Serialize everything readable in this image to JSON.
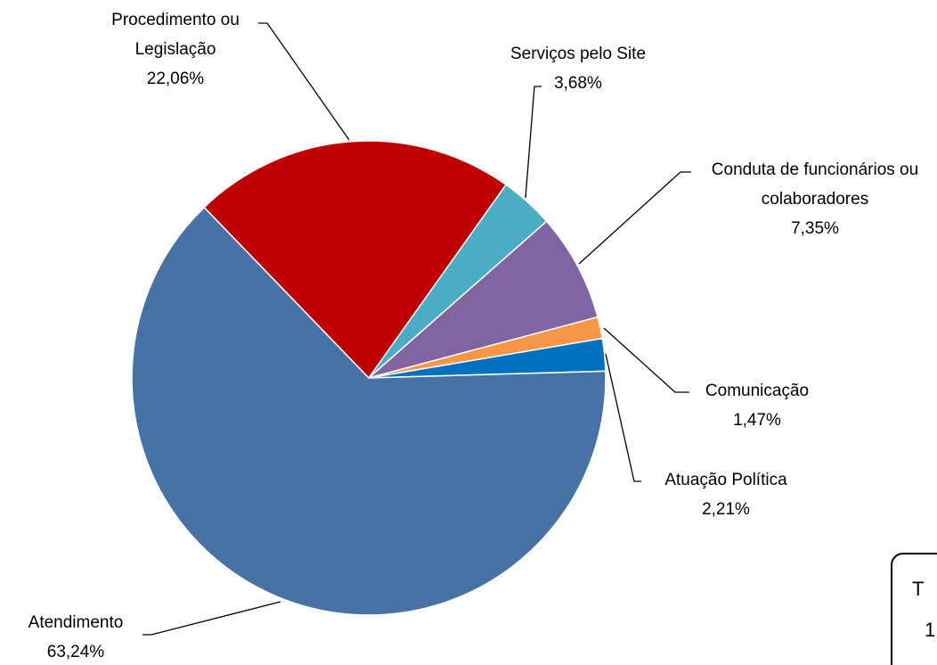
{
  "chart_data": {
    "type": "pie",
    "categories": [
      "Procedimento ou Legislação",
      "Serviços pelo Site",
      "Conduta de funcionários ou colaboradores",
      "Comunicação",
      "Atuação Política",
      "Atendimento"
    ],
    "values": [
      22.06,
      3.68,
      7.35,
      1.47,
      2.21,
      63.24
    ],
    "value_labels": [
      "22,06%",
      "3,68%",
      "7,35%",
      "1,47%",
      "2,21%",
      "63,24%"
    ],
    "colors": [
      "#c00000",
      "#4bacc6",
      "#8064a2",
      "#f79646",
      "#0070c0",
      "#4672a6"
    ]
  },
  "total_box": {
    "line1": "T",
    "line2": "1"
  }
}
